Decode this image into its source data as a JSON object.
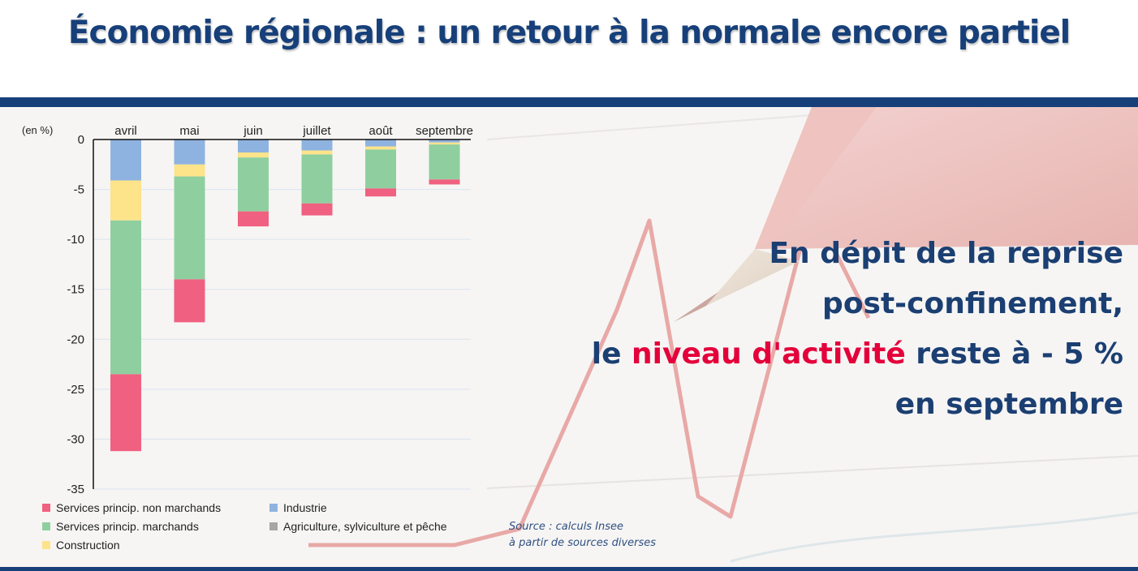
{
  "title": "Économie régionale : un retour à la normale encore partiel",
  "message": {
    "line1": "En dépit de la reprise",
    "line2": "post-confinement,",
    "line3_pre": "le ",
    "line3_accent": "niveau d'activité",
    "line3_post": " reste à - 5 %",
    "line4": "en septembre"
  },
  "source": {
    "line1": "Source : calculs Insee",
    "line2": "à partir de sources diverses"
  },
  "colors": {
    "brand": "#17407a",
    "accent": "#e4003a",
    "non_marchands": "#f06080",
    "marchands": "#8fcf9f",
    "construction": "#fde38a",
    "agriculture": "#a6a6a6",
    "industrie": "#8fb3e0"
  },
  "chart_data": {
    "type": "bar",
    "stacked": true,
    "unit_label": "(en %)",
    "categories": [
      "avril",
      "mai",
      "juin",
      "juillet",
      "août",
      "septembre"
    ],
    "ylim": [
      -35,
      0
    ],
    "yticks": [
      0,
      -5,
      -10,
      -15,
      -20,
      -25,
      -30,
      -35
    ],
    "grid": true,
    "legend_position": "bottom",
    "series": [
      {
        "name": "Industrie",
        "key": "industrie",
        "values": [
          -4.1,
          -2.5,
          -1.3,
          -1.1,
          -0.7,
          -0.3
        ]
      },
      {
        "name": "Agriculture, sylviculture et pêche",
        "key": "agriculture",
        "values": [
          0,
          0,
          0,
          0,
          0,
          0
        ]
      },
      {
        "name": "Construction",
        "key": "construction",
        "values": [
          -4.0,
          -1.2,
          -0.5,
          -0.4,
          -0.3,
          -0.2
        ]
      },
      {
        "name": "Services princip. marchands",
        "key": "marchands",
        "values": [
          -15.4,
          -10.3,
          -5.4,
          -4.9,
          -3.9,
          -3.5
        ]
      },
      {
        "name": "Services princip. non marchands",
        "key": "non_marchands",
        "values": [
          -7.7,
          -4.3,
          -1.5,
          -1.2,
          -0.8,
          -0.5
        ]
      }
    ],
    "legend_order": [
      "non_marchands",
      "industrie",
      "marchands",
      "agriculture",
      "construction"
    ]
  }
}
